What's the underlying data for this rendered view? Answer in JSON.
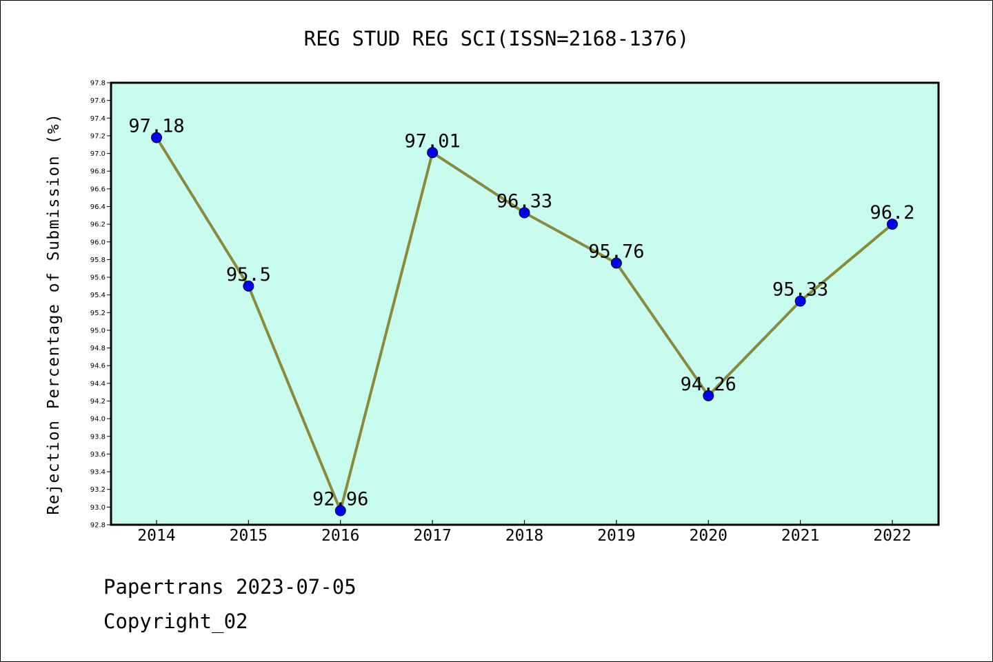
{
  "chart_data": {
    "type": "line",
    "title": "REG STUD REG SCI(ISSN=2168-1376)",
    "xlabel": "",
    "ylabel": "Rejection Percentage of Submission (%)",
    "categories": [
      "2014",
      "2015",
      "2016",
      "2017",
      "2018",
      "2019",
      "2020",
      "2021",
      "2022"
    ],
    "values": [
      97.18,
      95.5,
      92.96,
      97.01,
      96.33,
      95.76,
      94.26,
      95.33,
      96.2
    ],
    "data_labels": [
      "97.18",
      "95.5",
      "92.96",
      "97.01",
      "96.33",
      "95.76",
      "94.26",
      "95.33",
      "96.2"
    ],
    "ylim": [
      92.8,
      97.8
    ],
    "y_ticks": [
      "92.8",
      "93.0",
      "93.2",
      "93.4",
      "93.6",
      "93.8",
      "94.0",
      "94.2",
      "94.4",
      "94.6",
      "94.8",
      "95.0",
      "95.2",
      "95.4",
      "95.6",
      "95.8",
      "96.0",
      "96.2",
      "96.4",
      "96.6",
      "96.8",
      "97.0",
      "97.2",
      "97.4",
      "97.6",
      "97.8"
    ],
    "grid": false,
    "colors": {
      "plot_background": "#c8fcee",
      "line": "#8a8a3a",
      "marker": "#0000ee"
    }
  },
  "footer": {
    "source": "Papertrans 2023-07-05",
    "copyright": "Copyright_02"
  }
}
